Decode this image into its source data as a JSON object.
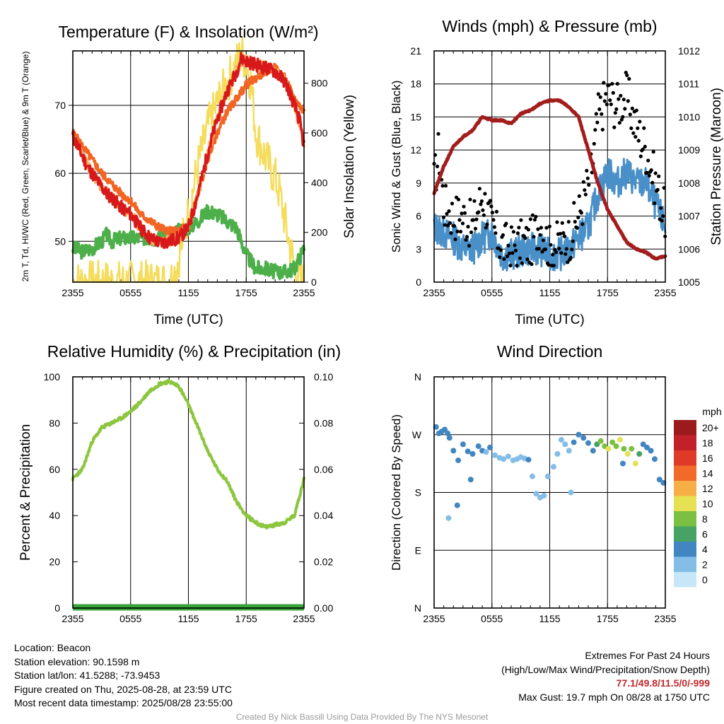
{
  "colors": {
    "temp": "#d7191c",
    "hiwc": "#fdae61",
    "dew": "#4daf4a",
    "temp9m": "#f26522",
    "solar": "#f5dc5a",
    "wind": "#4a90c8",
    "gust": "#000000",
    "pressure": "#a31d1d",
    "rh": "#8cc63f",
    "precip": "#3aa33a"
  },
  "charts": {
    "temp": {
      "title": "Temperature (F) & Insolation (W/m²)",
      "ylabel_left": "2m T, Td, HI/WC (Red, Green, Scarlet/Blue) & 9m T (Orange)",
      "ylabel_right": "Solar Insolation (Yellow)",
      "xlabel": "Time (UTC)",
      "xticks": [
        "2355",
        "0555",
        "1155",
        "1755",
        "2355"
      ],
      "yticks_left": [
        "50",
        "60",
        "70"
      ],
      "yticks_right": [
        "0",
        "200",
        "400",
        "600",
        "800"
      ]
    },
    "wind": {
      "title": "Winds (mph) & Pressure (mb)",
      "ylabel_left": "Sonic Wind & Gust (Blue, Black)",
      "ylabel_right": "Station Pressure (Maroon)",
      "xlabel": "Time (UTC)",
      "xticks": [
        "2355",
        "0555",
        "1155",
        "1755",
        "2355"
      ],
      "yticks_left": [
        "0",
        "3",
        "6",
        "9",
        "12",
        "15",
        "18",
        "21"
      ],
      "yticks_right": [
        "1005",
        "1006",
        "1007",
        "1008",
        "1009",
        "1010",
        "1011",
        "1012"
      ]
    },
    "rh": {
      "title": "Relative Humidity (%) & Precipitation (in)",
      "ylabel_left": "Percent & Precipitation",
      "xticks": [
        "2355",
        "0555",
        "1155",
        "1755",
        "2355"
      ],
      "yticks_left": [
        "0",
        "20",
        "40",
        "60",
        "80",
        "100"
      ],
      "yticks_right": [
        "0.00",
        "0.02",
        "0.04",
        "0.06",
        "0.08",
        "0.10"
      ]
    },
    "dir": {
      "title": "Wind Direction",
      "ylabel_left": "Direction (Colored By Speed)",
      "xticks": [
        "2355",
        "0555",
        "1155",
        "1755",
        "2355"
      ],
      "yticks_left": [
        "N",
        "E",
        "S",
        "W",
        "N"
      ],
      "legend_title": "mph",
      "legend_labels": [
        "0",
        "2",
        "4",
        "6",
        "8",
        "10",
        "12",
        "14",
        "16",
        "18",
        "20+"
      ],
      "legend_colors": [
        "#c6e7f7",
        "#84bde6",
        "#4186c1",
        "#46a364",
        "#7bc043",
        "#e5e152",
        "#f8ae46",
        "#f26a2a",
        "#df3a27",
        "#c2212a",
        "#9b1a1c"
      ]
    }
  },
  "chart_data": [
    {
      "type": "line",
      "title": "Temperature (F) & Insolation (W/m²)",
      "x_unit": "hours since 2355 UTC",
      "xlim": [
        0,
        24
      ],
      "ylim_left": [
        44,
        78
      ],
      "ylim_right": [
        0,
        930
      ],
      "series": [
        {
          "name": "2m T (Red)",
          "axis": "left",
          "x": [
            0,
            0.5,
            1,
            1.5,
            2,
            2.5,
            3,
            3.5,
            4,
            5,
            6,
            7,
            8,
            9,
            10,
            11,
            12,
            13,
            14,
            15,
            16,
            17,
            17.5,
            18,
            19,
            20,
            21,
            22,
            22.5,
            23,
            23.5,
            24
          ],
          "y": [
            65.5,
            64,
            62.5,
            61,
            60,
            59,
            58,
            57,
            56.5,
            55,
            54,
            52,
            50.5,
            49.8,
            50,
            50.5,
            52,
            57,
            63,
            68,
            72,
            75,
            77,
            76.5,
            76,
            75.5,
            75,
            73.5,
            72,
            70,
            68,
            64
          ]
        },
        {
          "name": "HI/WC (Scarlet/Blue)",
          "axis": "left",
          "x": [
            0,
            1,
            2,
            3,
            4,
            5,
            6,
            7,
            8,
            9,
            10,
            11,
            12,
            13,
            14,
            15,
            16,
            17,
            18,
            19,
            20,
            21,
            22,
            23,
            24
          ],
          "y": [
            65.5,
            62.5,
            60,
            58,
            56.5,
            55,
            54,
            52,
            50.5,
            49.8,
            50,
            50.5,
            52,
            57,
            63,
            68,
            72,
            75,
            76.5,
            76,
            75.5,
            75,
            73.5,
            70,
            64
          ]
        },
        {
          "name": "9m T (Orange)",
          "axis": "left",
          "x": [
            0,
            1,
            2,
            3,
            4,
            5,
            6,
            7,
            8,
            9,
            10,
            11,
            12,
            13,
            14,
            15,
            16,
            17,
            18,
            19,
            20,
            21,
            22,
            23,
            24
          ],
          "y": [
            66,
            64,
            62,
            60,
            58.5,
            57,
            56,
            54,
            53,
            52,
            51.5,
            51.5,
            52.5,
            57,
            62,
            66,
            69,
            71,
            73,
            74,
            75,
            75.5,
            74,
            71,
            69
          ]
        },
        {
          "name": "2m Td (Green)",
          "axis": "left",
          "x": [
            0,
            1,
            2,
            3,
            3.5,
            4,
            5,
            6,
            7,
            8,
            9,
            10,
            11,
            12,
            13,
            14,
            15,
            16,
            17,
            18,
            19,
            20,
            21,
            22,
            23,
            24
          ],
          "y": [
            49,
            48.5,
            49,
            50,
            51,
            50,
            50.5,
            50.5,
            50.5,
            50.5,
            50.5,
            50.5,
            51.5,
            52,
            53,
            54.5,
            54,
            53,
            52,
            48,
            46,
            46,
            45.5,
            45.5,
            46,
            49
          ]
        },
        {
          "name": "Solar Insolation (Yellow)",
          "axis": "right",
          "x": [
            0,
            9,
            10,
            10.5,
            11,
            12,
            13,
            14,
            15,
            16,
            17,
            17.5,
            18,
            18.5,
            19,
            20,
            21,
            21.5,
            22,
            22.5,
            23,
            23.5,
            24
          ],
          "y": [
            0,
            0,
            2,
            30,
            100,
            280,
            470,
            620,
            720,
            800,
            880,
            920,
            880,
            800,
            600,
            500,
            420,
            350,
            250,
            150,
            60,
            10,
            0
          ]
        }
      ]
    },
    {
      "type": "line",
      "title": "Winds (mph) & Pressure (mb)",
      "x_unit": "hours since 2355 UTC",
      "xlim": [
        0,
        24
      ],
      "ylim_left": [
        0,
        21
      ],
      "ylim_right": [
        1005,
        1012
      ],
      "series": [
        {
          "name": "Sonic Wind (Blue)",
          "axis": "left",
          "x": [
            0,
            1,
            2,
            3,
            4,
            5,
            6,
            7,
            8,
            9,
            10,
            11,
            12,
            13,
            14,
            15,
            16,
            17,
            18,
            19,
            20,
            21,
            22,
            23,
            24
          ],
          "y": [
            5,
            4.5,
            4,
            3,
            3,
            4,
            4.5,
            2.5,
            2.5,
            2.8,
            3,
            3,
            2.5,
            2.5,
            3,
            4,
            5,
            8,
            10,
            9,
            10,
            9,
            9,
            7,
            5
          ]
        },
        {
          "name": "Gust (Black)",
          "axis": "left",
          "x": [
            0,
            0.5,
            1,
            2,
            3,
            4,
            5,
            6,
            7,
            8,
            9,
            10,
            11,
            12,
            13,
            14,
            15,
            16,
            16.5,
            17,
            18,
            19,
            20,
            21,
            22,
            23,
            24
          ],
          "y": [
            9,
            12,
            7,
            6,
            6,
            5,
            8,
            5,
            3.5,
            3,
            3.5,
            3.5,
            5.5,
            3,
            3.5,
            4,
            6,
            9,
            11,
            15,
            17,
            16,
            17,
            14,
            12,
            9,
            6
          ]
        },
        {
          "name": "Station Pressure (Maroon)",
          "axis": "right",
          "x": [
            0,
            1,
            2,
            3,
            4,
            5,
            6,
            7,
            8,
            9,
            10,
            11,
            12,
            13,
            14,
            15,
            16,
            17,
            18,
            19,
            20,
            21,
            22,
            23,
            24
          ],
          "y": [
            1007.7,
            1008.5,
            1009.1,
            1009.4,
            1009.6,
            1010.0,
            1009.9,
            1009.9,
            1009.8,
            1010.1,
            1010.2,
            1010.4,
            1010.5,
            1010.5,
            1010.3,
            1010.0,
            1009.0,
            1008.0,
            1007.2,
            1006.7,
            1006.2,
            1006.0,
            1005.9,
            1005.7,
            1005.8
          ]
        }
      ]
    },
    {
      "type": "line",
      "title": "Relative Humidity (%) & Precipitation (in)",
      "x_unit": "hours since 2355 UTC",
      "xlim": [
        0,
        24
      ],
      "ylim_left": [
        0,
        100
      ],
      "ylim_right": [
        0,
        0.1
      ],
      "series": [
        {
          "name": "Relative Humidity",
          "axis": "left",
          "x": [
            0,
            1,
            2,
            3,
            4,
            5,
            6,
            7,
            8,
            9,
            10,
            11,
            12,
            13,
            14,
            15,
            16,
            17,
            18,
            19,
            20,
            21,
            22,
            23,
            24
          ],
          "y": [
            56,
            60,
            72,
            78,
            80,
            82,
            85,
            89,
            94,
            97,
            98,
            96,
            88,
            78,
            68,
            60,
            55,
            46,
            40,
            37,
            35,
            36,
            37,
            40,
            56
          ]
        },
        {
          "name": "Precipitation",
          "axis": "right",
          "x": [
            0,
            24
          ],
          "y": [
            0,
            0
          ]
        }
      ]
    },
    {
      "type": "scatter",
      "title": "Wind Direction",
      "x_unit": "hours since 2355 UTC",
      "xlim": [
        0,
        24
      ],
      "y_unit": "degrees",
      "ylim": [
        0,
        360
      ],
      "points": [
        {
          "x": 0.2,
          "y": 282,
          "speed": 4
        },
        {
          "x": 0.5,
          "y": 272,
          "speed": 4
        },
        {
          "x": 0.8,
          "y": 275,
          "speed": 3
        },
        {
          "x": 1.1,
          "y": 278,
          "speed": 4
        },
        {
          "x": 1.4,
          "y": 272,
          "speed": 4
        },
        {
          "x": 1.6,
          "y": 265,
          "speed": 3
        },
        {
          "x": 2.0,
          "y": 245,
          "speed": 3
        },
        {
          "x": 2.5,
          "y": 230,
          "speed": 4
        },
        {
          "x": 3.0,
          "y": 255,
          "speed": 4
        },
        {
          "x": 3.5,
          "y": 244,
          "speed": 3
        },
        {
          "x": 3.8,
          "y": 200,
          "speed": 4
        },
        {
          "x": 2.4,
          "y": 160,
          "speed": 3
        },
        {
          "x": 1.5,
          "y": 140,
          "speed": 2
        },
        {
          "x": 4.0,
          "y": 240,
          "speed": 3
        },
        {
          "x": 4.6,
          "y": 252,
          "speed": 4
        },
        {
          "x": 5.0,
          "y": 245,
          "speed": 3
        },
        {
          "x": 5.4,
          "y": 243,
          "speed": 2
        },
        {
          "x": 5.8,
          "y": 250,
          "speed": 3
        },
        {
          "x": 6.3,
          "y": 238,
          "speed": 2
        },
        {
          "x": 6.8,
          "y": 234,
          "speed": 2
        },
        {
          "x": 7.2,
          "y": 232,
          "speed": 2
        },
        {
          "x": 7.7,
          "y": 236,
          "speed": 2
        },
        {
          "x": 8.2,
          "y": 230,
          "speed": 1
        },
        {
          "x": 8.6,
          "y": 232,
          "speed": 2
        },
        {
          "x": 9.0,
          "y": 235,
          "speed": 2
        },
        {
          "x": 9.4,
          "y": 233,
          "speed": 2
        },
        {
          "x": 9.8,
          "y": 231,
          "speed": 3
        },
        {
          "x": 10.2,
          "y": 205,
          "speed": 2
        },
        {
          "x": 10.6,
          "y": 178,
          "speed": 2
        },
        {
          "x": 11.0,
          "y": 172,
          "speed": 2
        },
        {
          "x": 11.4,
          "y": 175,
          "speed": 2
        },
        {
          "x": 11.8,
          "y": 205,
          "speed": 2
        },
        {
          "x": 12.4,
          "y": 220,
          "speed": 2
        },
        {
          "x": 12.8,
          "y": 240,
          "speed": 2
        },
        {
          "x": 13.2,
          "y": 262,
          "speed": 2
        },
        {
          "x": 13.6,
          "y": 255,
          "speed": 2
        },
        {
          "x": 14.0,
          "y": 245,
          "speed": 2
        },
        {
          "x": 14.5,
          "y": 258,
          "speed": 3
        },
        {
          "x": 15.0,
          "y": 270,
          "speed": 3
        },
        {
          "x": 15.5,
          "y": 265,
          "speed": 4
        },
        {
          "x": 16.0,
          "y": 257,
          "speed": 4
        },
        {
          "x": 16.5,
          "y": 245,
          "speed": 4
        },
        {
          "x": 16.9,
          "y": 255,
          "speed": 6
        },
        {
          "x": 17.3,
          "y": 260,
          "speed": 7
        },
        {
          "x": 17.7,
          "y": 252,
          "speed": 8
        },
        {
          "x": 18.1,
          "y": 248,
          "speed": 9
        },
        {
          "x": 18.5,
          "y": 258,
          "speed": 7
        },
        {
          "x": 18.9,
          "y": 252,
          "speed": 8
        },
        {
          "x": 19.3,
          "y": 262,
          "speed": 9
        },
        {
          "x": 19.7,
          "y": 248,
          "speed": 7
        },
        {
          "x": 20.1,
          "y": 240,
          "speed": 9
        },
        {
          "x": 20.5,
          "y": 248,
          "speed": 8
        },
        {
          "x": 20.9,
          "y": 225,
          "speed": 10
        },
        {
          "x": 21.3,
          "y": 240,
          "speed": 6
        },
        {
          "x": 21.7,
          "y": 255,
          "speed": 4
        },
        {
          "x": 22.1,
          "y": 250,
          "speed": 4
        },
        {
          "x": 22.5,
          "y": 245,
          "speed": 4
        },
        {
          "x": 22.9,
          "y": 232,
          "speed": 4
        },
        {
          "x": 23.4,
          "y": 200,
          "speed": 4
        },
        {
          "x": 23.8,
          "y": 195,
          "speed": 4
        },
        {
          "x": 14.2,
          "y": 180,
          "speed": 2
        },
        {
          "x": 19.6,
          "y": 225,
          "speed": 4
        }
      ]
    }
  ],
  "info": {
    "location": "Location: Beacon",
    "elevation": "Station elevation: 90.1598 m",
    "latlon": "Station lat/lon: 41.5288; -73.9453",
    "created": "Figure created on Thu, 2025-08-28, at 23:59 UTC",
    "recent": "Most recent data timestamp: 2025/08/28 23:55:00",
    "ext_title": "Extremes For Past 24 Hours",
    "ext_sub": "(High/Low/Max Wind/Precipitation/Snow Depth)",
    "ext_vals": "77.1/49.8/11.5/0/-999",
    "gust": "Max Gust: 19.7 mph On 08/28 at 1750 UTC",
    "credit": "Created By Nick Bassill Using Data Provided By The NYS Mesonet"
  }
}
